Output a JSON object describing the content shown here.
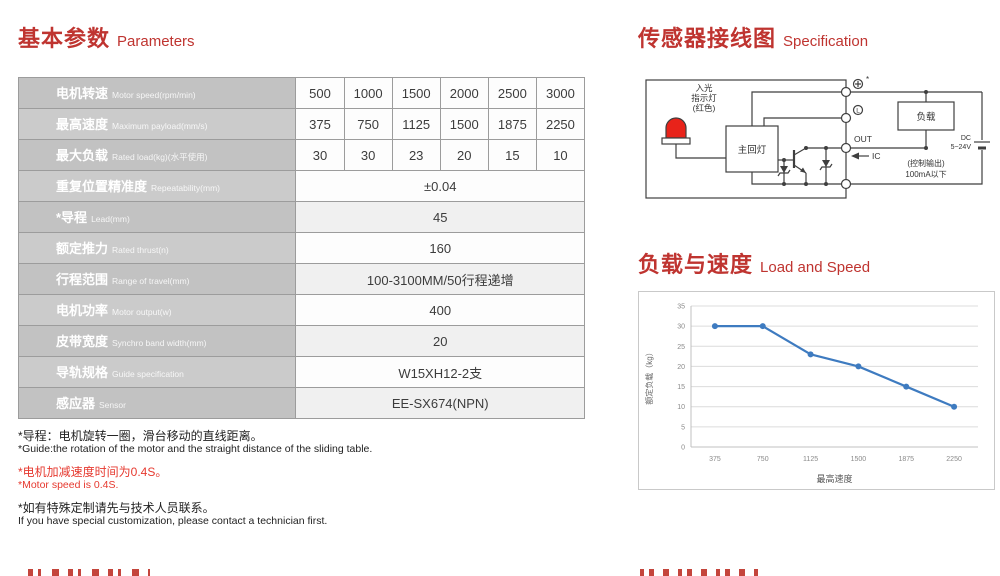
{
  "colors": {
    "accent_red": "#bf3430",
    "note_red": "#e6392f",
    "led_red": "#e8231a",
    "chart_line": "#3e7bc0",
    "table_header_gray": "#c6c6c6"
  },
  "sections": {
    "parameters": {
      "title_cn": "基本参数",
      "title_en": "Parameters"
    },
    "wiring": {
      "title_cn": "传感器接线图",
      "title_en": "Specification"
    },
    "load_speed": {
      "title_cn": "负载与速度",
      "title_en": "Load and Speed"
    }
  },
  "table": {
    "rows": [
      {
        "cn": "电机转速",
        "en": "Motor speed(rpm/min)",
        "values": [
          "500",
          "1000",
          "1500",
          "2000",
          "2500",
          "3000"
        ]
      },
      {
        "cn": "最高速度",
        "en": "Maximum payload(mm/s)",
        "values": [
          "375",
          "750",
          "1125",
          "1500",
          "1875",
          "2250"
        ]
      },
      {
        "cn": "最大负载",
        "en": "Rated load(kg)(水平使用)",
        "values": [
          "30",
          "30",
          "23",
          "20",
          "15",
          "10"
        ]
      },
      {
        "cn": "重复位置精准度",
        "en": "Repeatability(mm)",
        "value": "±0.04"
      },
      {
        "cn": "*导程",
        "en": "Lead(mm)",
        "value": "45"
      },
      {
        "cn": "额定推力",
        "en": "Rated thrust(n)",
        "value": "160"
      },
      {
        "cn": "行程范围",
        "en": "Range of travel(mm)",
        "value": "100-3100MM/50行程递增"
      },
      {
        "cn": "电机功率",
        "en": "Motor output(w)",
        "value": "400"
      },
      {
        "cn": "皮带宽度",
        "en": "Synchro band width(mm)",
        "value": "20"
      },
      {
        "cn": "导轨规格",
        "en": "Guide specification",
        "value": "W15XH12-2支"
      },
      {
        "cn": "感应器",
        "en": "Sensor",
        "value": "EE-SX674(NPN)"
      }
    ]
  },
  "footnotes": [
    {
      "cn": "*导程：电机旋转一圈，滑台移动的直线距离。",
      "en": "*Guide:the rotation of the motor and the straight distance of the sliding table."
    },
    {
      "cn": "*电机加减速度时间为0.4S。",
      "en": "*Motor speed is 0.4S."
    },
    {
      "cn": "*如有特殊定制请先与技术人员联系。",
      "en": "If you have special customization, please contact a technician first."
    }
  ],
  "diagram": {
    "led_label_line1": "入光",
    "led_label_line2": "指示灯",
    "led_label_line3": "(红色)",
    "main_circuit_box": "主回灯",
    "load_box": "负载",
    "terminal_plus_note": "*",
    "terminal_l": "L",
    "out_label": "OUT",
    "ic_label": "IC",
    "control_output_line1": "(控制输出)",
    "control_output_line2": "100mA以下",
    "dc_line1": "DC",
    "dc_line2": "5~24V"
  },
  "chart_data": {
    "type": "line",
    "categories": [
      "375",
      "750",
      "1125",
      "1500",
      "1875",
      "2250"
    ],
    "series": [
      {
        "name": "额定负载",
        "values": [
          30,
          30,
          23,
          20,
          15,
          10
        ]
      }
    ],
    "title": "",
    "xlabel": "最高速度",
    "ylabel": "额定负载（kg）",
    "ylim": [
      0,
      35
    ],
    "ytick_step": 5,
    "grid": true,
    "legend": false,
    "line_color": "#3e7bc0"
  }
}
